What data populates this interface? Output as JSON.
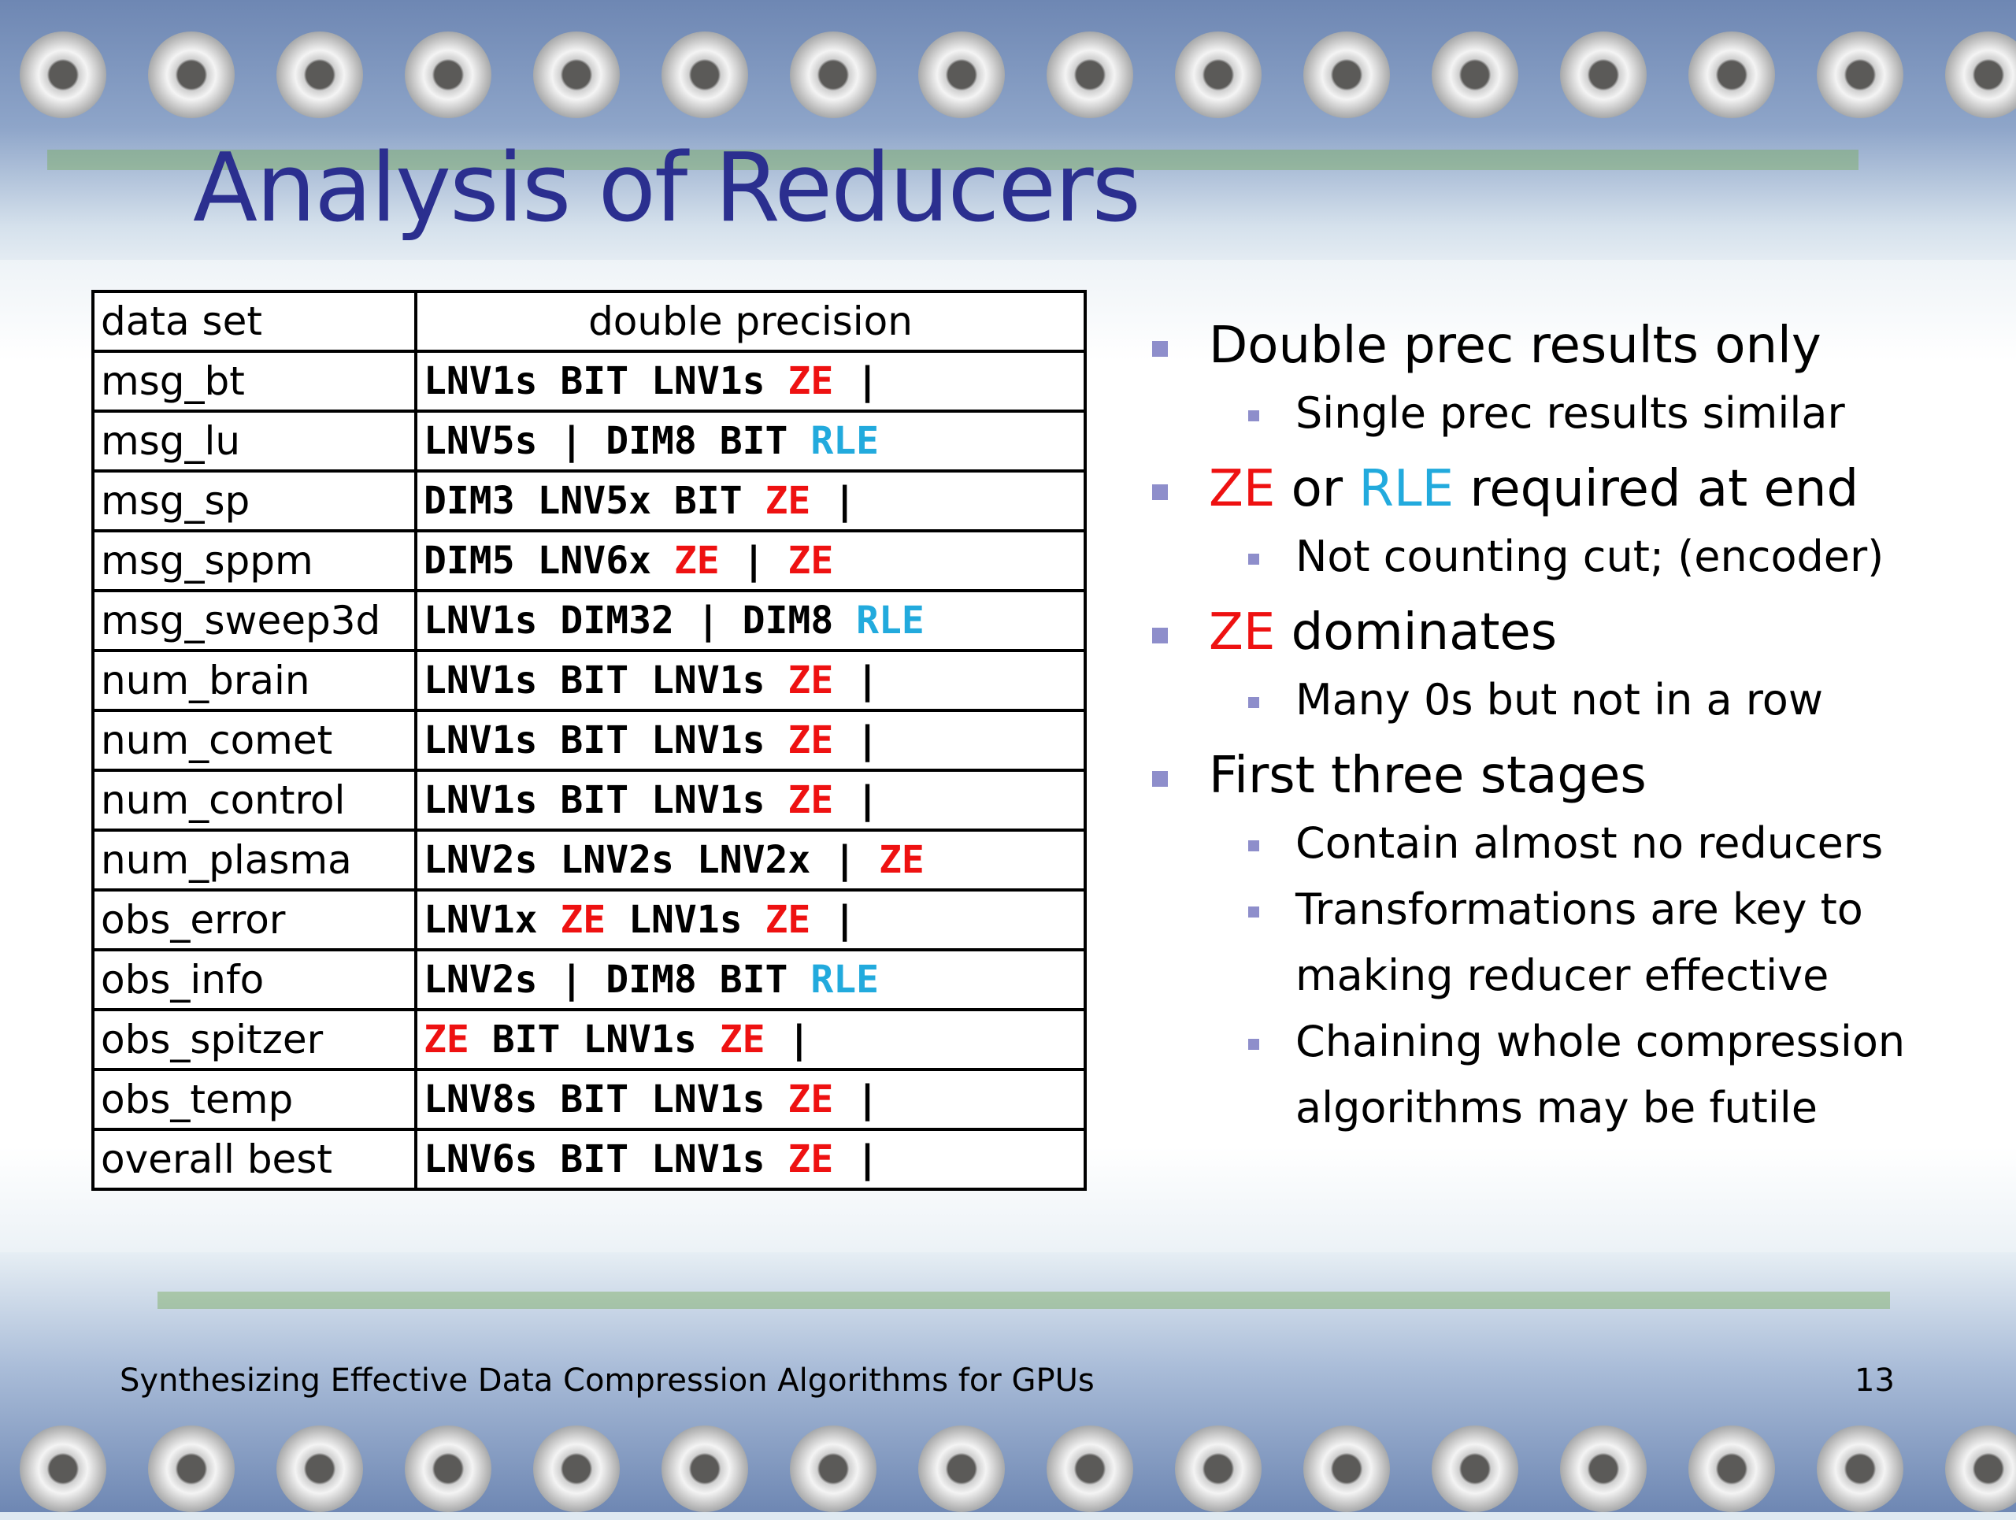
{
  "slide": {
    "title": "Analysis of Reducers",
    "footer": "Synthesizing Effective Data Compression Algorithms for GPUs",
    "page_number": "13"
  },
  "table": {
    "headers": [
      "data set",
      "double precision"
    ],
    "rows": [
      {
        "dataset": "msg_bt",
        "chain": [
          "LNV1s",
          "BIT",
          "LNV1s",
          "ZE",
          "|"
        ]
      },
      {
        "dataset": "msg_lu",
        "chain": [
          "LNV5s",
          "|",
          "DIM8",
          "BIT",
          "RLE"
        ]
      },
      {
        "dataset": "msg_sp",
        "chain": [
          "DIM3",
          "LNV5x",
          "BIT",
          "ZE",
          "|"
        ]
      },
      {
        "dataset": "msg_sppm",
        "chain": [
          "DIM5",
          "LNV6x",
          "ZE",
          "|",
          "ZE"
        ]
      },
      {
        "dataset": "msg_sweep3d",
        "chain": [
          "LNV1s",
          "DIM32",
          "|",
          "DIM8",
          "RLE"
        ]
      },
      {
        "dataset": "num_brain",
        "chain": [
          "LNV1s",
          "BIT",
          "LNV1s",
          "ZE",
          "|"
        ]
      },
      {
        "dataset": "num_comet",
        "chain": [
          "LNV1s",
          "BIT",
          "LNV1s",
          "ZE",
          "|"
        ]
      },
      {
        "dataset": "num_control",
        "chain": [
          "LNV1s",
          "BIT",
          "LNV1s",
          "ZE",
          "|"
        ]
      },
      {
        "dataset": "num_plasma",
        "chain": [
          "LNV2s",
          "LNV2s",
          "LNV2x",
          "|",
          "ZE"
        ]
      },
      {
        "dataset": "obs_error",
        "chain": [
          "LNV1x",
          "ZE",
          "LNV1s",
          "ZE",
          "|"
        ]
      },
      {
        "dataset": "obs_info",
        "chain": [
          "LNV2s",
          "|",
          "DIM8",
          "BIT",
          "RLE"
        ]
      },
      {
        "dataset": "obs_spitzer",
        "chain": [
          "ZE",
          "BIT",
          "LNV1s",
          "ZE",
          "|"
        ]
      },
      {
        "dataset": "obs_temp",
        "chain": [
          "LNV8s",
          "BIT",
          "LNV1s",
          "ZE",
          "|"
        ]
      },
      {
        "dataset": "overall best",
        "chain": [
          "LNV6s",
          "BIT",
          "LNV1s",
          "ZE",
          "|"
        ]
      }
    ],
    "token_colors": {
      "ZE": "#ee1111",
      "RLE": "#22aadd",
      "default": "#000000"
    }
  },
  "bullets": {
    "b1": {
      "text": "Double prec results only"
    },
    "b1a": {
      "text": "Single prec results similar"
    },
    "b2": {
      "ze": "ZE",
      "or": " or ",
      "rle": "RLE",
      "rest": " required at end"
    },
    "b2a": {
      "text": "Not counting cut; (encoder)"
    },
    "b3": {
      "ze": "ZE",
      "rest": " dominates"
    },
    "b3a": {
      "text": "Many 0s but not in a row"
    },
    "b4": {
      "text": "First three stages"
    },
    "b4a": {
      "text": "Contain almost no reducers"
    },
    "b4b": {
      "text": "Transformations are key to making reducer effective"
    },
    "b4c": {
      "text": "Chaining whole compression algorithms may be futile"
    }
  },
  "colors": {
    "title": "#2b2f8f",
    "bullet_marker": "#8e8ecb"
  }
}
